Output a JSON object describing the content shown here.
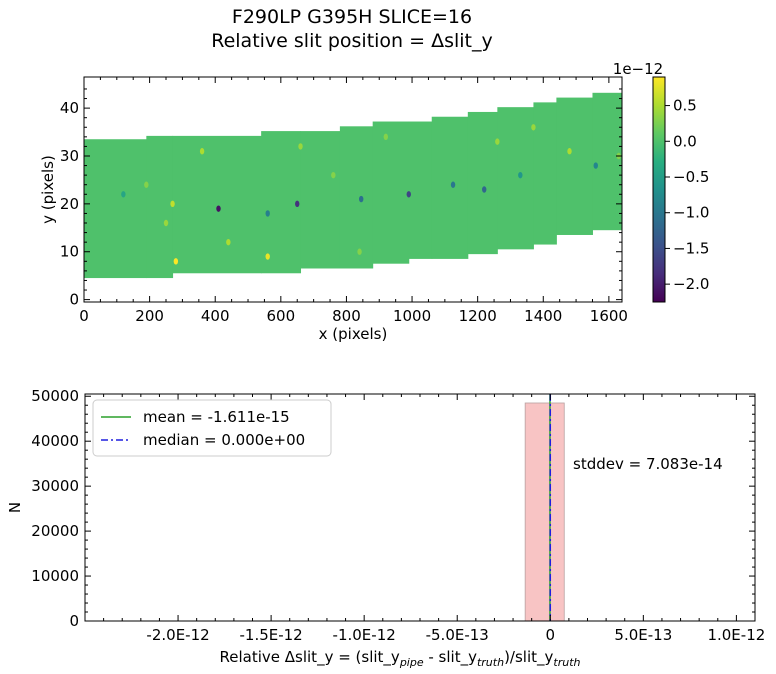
{
  "title_line1": "F290LP   G395H   SLICE=16",
  "title_line2": "Relative slit position = Δslit_y",
  "chart_data": [
    {
      "type": "heatmap",
      "xlabel": "x (pixels)",
      "ylabel": "y (pixels)",
      "xlim": [
        0,
        1640
      ],
      "ylim": [
        -0.5,
        46.5
      ],
      "xticks": [
        0,
        200,
        400,
        600,
        800,
        1000,
        1200,
        1400,
        1600
      ],
      "yticks": [
        0,
        10,
        20,
        30,
        40
      ],
      "background_value": 0.0,
      "steps": [
        {
          "x0": 0,
          "x1": 190,
          "y0": 4.5,
          "y1": 33.5
        },
        {
          "x0": 190,
          "x1": 270,
          "y0": 4.5,
          "y1": 34.2
        },
        {
          "x0": 270,
          "x1": 540,
          "y0": 5.5,
          "y1": 34.2
        },
        {
          "x0": 540,
          "x1": 660,
          "y0": 5.5,
          "y1": 35.2
        },
        {
          "x0": 660,
          "x1": 780,
          "y0": 6.5,
          "y1": 35.2
        },
        {
          "x0": 780,
          "x1": 880,
          "y0": 6.5,
          "y1": 36.2
        },
        {
          "x0": 880,
          "x1": 990,
          "y0": 7.5,
          "y1": 37.2
        },
        {
          "x0": 990,
          "x1": 1060,
          "y0": 8.5,
          "y1": 37.2
        },
        {
          "x0": 1060,
          "x1": 1170,
          "y0": 8.5,
          "y1": 38.2
        },
        {
          "x0": 1170,
          "x1": 1260,
          "y0": 9.5,
          "y1": 39.2
        },
        {
          "x0": 1260,
          "x1": 1370,
          "y0": 10.5,
          "y1": 40.2
        },
        {
          "x0": 1370,
          "x1": 1440,
          "y0": 11.5,
          "y1": 41.2
        },
        {
          "x0": 1440,
          "x1": 1550,
          "y0": 13.5,
          "y1": 42.2
        },
        {
          "x0": 1550,
          "x1": 1640,
          "y0": 14.5,
          "y1": 43.2
        }
      ],
      "outliers": [
        {
          "x": 410,
          "y": 19,
          "v": -2.1e-12
        },
        {
          "x": 650,
          "y": 20,
          "v": -1.8e-12
        },
        {
          "x": 990,
          "y": 22,
          "v": -1.6e-12
        },
        {
          "x": 1220,
          "y": 23,
          "v": -1.2e-12
        },
        {
          "x": 845,
          "y": 21,
          "v": -1.1e-12
        },
        {
          "x": 1125,
          "y": 24,
          "v": -1e-12
        },
        {
          "x": 560,
          "y": 18,
          "v": -9e-13
        },
        {
          "x": 1560,
          "y": 28,
          "v": -8e-13
        },
        {
          "x": 1330,
          "y": 26,
          "v": -6e-13
        },
        {
          "x": 120,
          "y": 22,
          "v": -4e-13
        },
        {
          "x": 280,
          "y": 8,
          "v": 9e-13
        },
        {
          "x": 560,
          "y": 9,
          "v": 8e-13
        },
        {
          "x": 440,
          "y": 12,
          "v": 5e-13
        },
        {
          "x": 270,
          "y": 20,
          "v": 6e-13
        },
        {
          "x": 250,
          "y": 16,
          "v": 4e-13
        },
        {
          "x": 360,
          "y": 31,
          "v": 5e-13
        },
        {
          "x": 660,
          "y": 32,
          "v": 4e-13
        },
        {
          "x": 1480,
          "y": 31,
          "v": 5e-13
        },
        {
          "x": 1630,
          "y": 30,
          "v": 3e-13
        },
        {
          "x": 1260,
          "y": 33,
          "v": 4e-13
        },
        {
          "x": 920,
          "y": 34,
          "v": 3e-13
        },
        {
          "x": 840,
          "y": 10,
          "v": 3e-13
        },
        {
          "x": 1370,
          "y": 36,
          "v": 4e-13
        },
        {
          "x": 190,
          "y": 24,
          "v": 3e-13
        },
        {
          "x": 760,
          "y": 26,
          "v": 3e-13
        }
      ],
      "colorbar": {
        "colormap": "viridis",
        "vmin": -2.25e-12,
        "vmax": 9e-13,
        "ticks": [
          0.5,
          0.0,
          -0.5,
          -1.0,
          -1.5,
          -2.0
        ],
        "tick_labels": [
          "0.5",
          "0.0",
          "−0.5",
          "−1.0",
          "−1.5",
          "−2.0"
        ],
        "offset_label": "1e−12"
      }
    },
    {
      "type": "bar",
      "xlabel": "Relative Δslit_y = (slit_y_pipe - slit_y_truth)/slit_y_truth",
      "xlabel_parts": {
        "a": "Relative Δslit_y = (slit_y",
        "sub1": "pipe",
        "b": " - slit_y",
        "sub2": "truth",
        "c": ")/slit_y",
        "sub3": "truth"
      },
      "ylabel": "N",
      "xlim": [
        -2.5e-12,
        1.1e-12
      ],
      "ylim": [
        0,
        50500
      ],
      "xtick_values": [
        -2e-12,
        -1.5e-12,
        -1e-12,
        -5e-13,
        0,
        5e-13,
        1e-12
      ],
      "xtick_labels": [
        "-2.0E-12",
        "-1.5E-12",
        "-1.0E-12",
        "-5.0E-13",
        "0",
        "5.0E-13",
        "1.0E-12"
      ],
      "yticks": [
        0,
        10000,
        20000,
        30000,
        40000,
        50000
      ],
      "bins": [
        {
          "x0": -2.35e-12,
          "x1": -1.35e-13,
          "count": 0
        },
        {
          "x0": -1.35e-13,
          "x1": 7.5e-14,
          "count": 48500
        },
        {
          "x0": 7.5e-14,
          "x1": 2.9e-13,
          "count": 0
        }
      ],
      "bar_color": "#f8c4c4",
      "mean": -1.611e-15,
      "median": 0.0,
      "legend": [
        {
          "label": "mean = -1.611e-15",
          "color": "#2ca02c",
          "style": "solid"
        },
        {
          "label": "median = 0.000e+00",
          "color": "#1f1fdd",
          "style": "dashdot"
        }
      ],
      "legend_position": "upper-left",
      "annotation": "stddev = 7.083e-14"
    }
  ]
}
